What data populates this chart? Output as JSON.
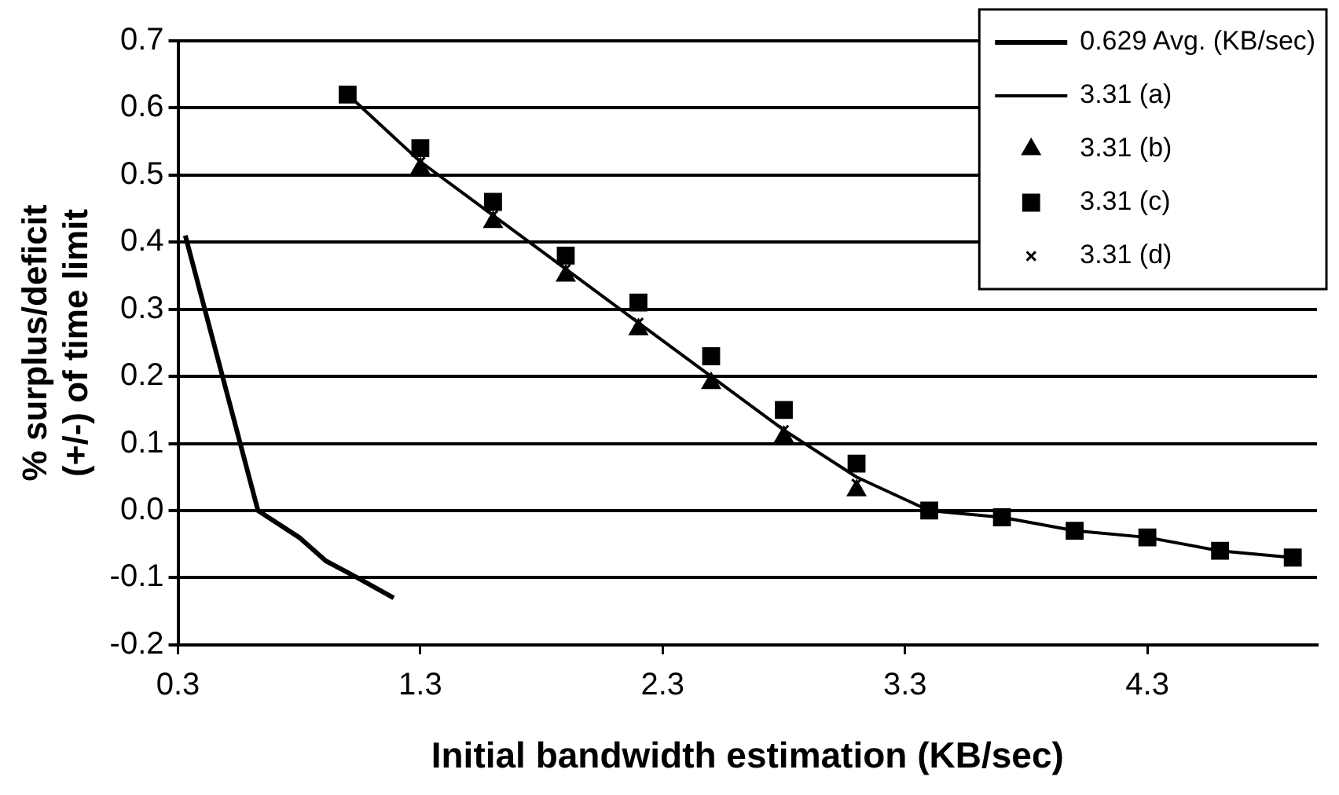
{
  "chart_data": {
    "type": "line",
    "xlabel": "Initial bandwidth estimation (KB/sec)",
    "ylabel": "% surplus/deficit (+/-) of time limit",
    "xlim": [
      0.3,
      5.0
    ],
    "xticks": [
      0.3,
      1.3,
      2.3,
      3.3,
      4.3
    ],
    "ylim": [
      -0.2,
      0.7
    ],
    "yticks": [
      {
        "value": -0.2,
        "label": "-0.2"
      },
      {
        "value": -0.1,
        "label": "-0.1"
      },
      {
        "value": 0,
        "label": "0.0"
      },
      {
        "value": 0.1,
        "label": "0.1"
      },
      {
        "value": 0.2,
        "label": "0.2"
      },
      {
        "value": 0.3,
        "label": "0.3"
      },
      {
        "value": 0.4,
        "label": "0.4"
      },
      {
        "value": 0.5,
        "label": "0.5"
      },
      {
        "value": 0.6,
        "label": "0.6"
      },
      {
        "value": 0.7,
        "label": "0.7"
      }
    ],
    "grid": "y",
    "legend": "top right",
    "series": [
      {
        "name": "0.629 Avg. (KB/sec)",
        "marker": "none",
        "line_style": "solid",
        "color": "#000000",
        "x": [
          0.33,
          0.63,
          0.8,
          0.91,
          1.04,
          1.19
        ],
        "values": [
          0.41,
          0.0,
          -0.04,
          -0.075,
          -0.1,
          -0.13
        ]
      },
      {
        "name": "3.31 (a)",
        "marker": "none",
        "line_style": "solid",
        "color": "#000000",
        "x": [
          1.0,
          1.3,
          1.6,
          1.9,
          2.2,
          2.5,
          2.8,
          3.1,
          3.4,
          3.7,
          4.0,
          4.3,
          4.6,
          4.9
        ],
        "values": [
          0.62,
          0.52,
          0.44,
          0.36,
          0.28,
          0.2,
          0.12,
          0.05,
          0.0,
          -0.01,
          -0.03,
          -0.04,
          -0.06,
          -0.07
        ]
      },
      {
        "name": "3.31 (b)",
        "type": "scatter",
        "marker": "triangle",
        "color": "#000000",
        "x": [
          1.3,
          1.6,
          1.9,
          2.2,
          2.5,
          2.8,
          3.1
        ],
        "values": [
          0.51,
          0.43,
          0.35,
          0.27,
          0.19,
          0.11,
          0.03
        ]
      },
      {
        "name": "3.31 (c)",
        "type": "scatter",
        "marker": "square",
        "color": "#000000",
        "x": [
          1.0,
          1.3,
          1.6,
          1.9,
          2.2,
          2.5,
          2.8,
          3.1,
          3.4,
          3.7,
          4.0,
          4.3,
          4.6,
          4.9
        ],
        "values": [
          0.62,
          0.54,
          0.46,
          0.38,
          0.31,
          0.23,
          0.15,
          0.07,
          0.0,
          -0.01,
          -0.03,
          -0.04,
          -0.06,
          -0.07
        ]
      },
      {
        "name": "3.31 (d)",
        "type": "scatter",
        "marker": "cross",
        "color": "#000000",
        "x": [
          1.3,
          1.6,
          1.9,
          2.2,
          2.5,
          2.8,
          3.1
        ],
        "values": [
          0.52,
          0.44,
          0.36,
          0.28,
          null,
          0.12,
          0.04
        ]
      }
    ]
  }
}
